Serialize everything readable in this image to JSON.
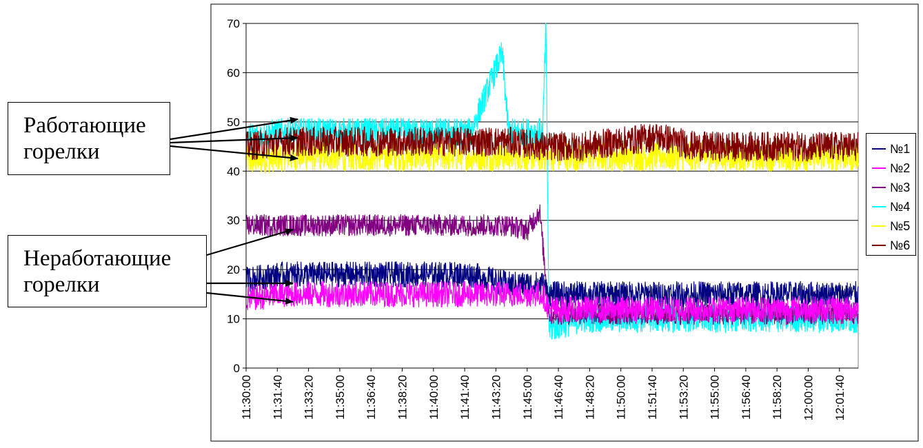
{
  "callouts": {
    "working": [
      "Работающие",
      "горелки"
    ],
    "idle": [
      "Неработающие",
      "горелки"
    ]
  },
  "chart_data": {
    "type": "line",
    "title": "",
    "xlabel": "",
    "ylabel": "",
    "xlim": [
      "11:30:00",
      "12:02:40"
    ],
    "ylim": [
      0,
      70
    ],
    "y_ticks": [
      0,
      10,
      20,
      30,
      40,
      50,
      60,
      70
    ],
    "x_ticks": [
      "11:30:00",
      "11:31:40",
      "11:33:20",
      "11:35:00",
      "11:36:40",
      "11:38:20",
      "11:40:00",
      "11:41:40",
      "11:43:20",
      "11:45:00",
      "11:46:40",
      "11:48:20",
      "11:50:00",
      "11:51:40",
      "11:53:20",
      "11:55:00",
      "11:56:40",
      "11:58:20",
      "12:00:00",
      "12:01:40"
    ],
    "grid": "horizontal",
    "legend_position": "right",
    "series": [
      {
        "name": "№1",
        "color": "#000080",
        "x": [
          "11:30:00",
          "11:32:00",
          "11:34:00",
          "11:36:00",
          "11:38:00",
          "11:40:00",
          "11:42:00",
          "11:44:00",
          "11:45:50",
          "11:46:10",
          "11:48:00",
          "11:51:00",
          "11:54:00",
          "11:57:00",
          "12:00:00",
          "12:02:40"
        ],
        "y": [
          18,
          19,
          19,
          19,
          19,
          19,
          19,
          17,
          17,
          15,
          15,
          15,
          15,
          15,
          15,
          15
        ]
      },
      {
        "name": "№2",
        "color": "#ff00ff",
        "x": [
          "11:30:00",
          "11:32:00",
          "11:34:00",
          "11:36:00",
          "11:38:00",
          "11:40:00",
          "11:42:00",
          "11:44:00",
          "11:45:50",
          "11:46:10",
          "11:48:00",
          "11:51:00",
          "11:54:00",
          "11:57:00",
          "12:00:00",
          "12:02:40"
        ],
        "y": [
          14,
          15,
          15,
          15,
          15,
          15,
          15,
          15,
          15,
          12,
          12,
          12,
          12,
          12,
          12,
          12
        ]
      },
      {
        "name": "№3",
        "color": "#800080",
        "x": [
          "11:30:00",
          "11:32:00",
          "11:34:00",
          "11:36:00",
          "11:38:00",
          "11:40:00",
          "11:42:00",
          "11:44:00",
          "11:45:00",
          "11:45:40",
          "11:46:10",
          "11:48:00",
          "11:51:00",
          "11:54:00",
          "11:57:00",
          "12:00:00",
          "12:02:40"
        ],
        "y": [
          29,
          29,
          29,
          29,
          29,
          29,
          29,
          29,
          28,
          32,
          11,
          11,
          11,
          11,
          11,
          11,
          11
        ]
      },
      {
        "name": "№4",
        "color": "#00ffff",
        "x": [
          "11:30:00",
          "11:32:00",
          "11:34:00",
          "11:36:00",
          "11:38:00",
          "11:40:00",
          "11:42:00",
          "11:43:40",
          "11:44:00",
          "11:45:50",
          "11:46:00",
          "11:46:10",
          "11:48:00",
          "11:51:00",
          "11:54:00",
          "12:00:00",
          "12:02:40"
        ],
        "y": [
          47,
          48,
          48,
          48,
          48,
          48,
          48,
          64,
          48,
          48,
          70,
          8,
          10,
          10,
          10,
          10,
          10
        ]
      },
      {
        "name": "№5",
        "color": "#ffff00",
        "x": [
          "11:30:00",
          "11:32:00",
          "11:34:00",
          "11:36:00",
          "11:38:00",
          "11:40:00",
          "11:42:00",
          "11:44:00",
          "11:46:00",
          "11:48:00",
          "11:50:00",
          "11:52:00",
          "11:54:00",
          "11:56:00",
          "11:58:00",
          "12:00:00",
          "12:02:40"
        ],
        "y": [
          42,
          43,
          43,
          43,
          43,
          43,
          43,
          43,
          43,
          43,
          43,
          43,
          43,
          43,
          43,
          43,
          43
        ]
      },
      {
        "name": "№6",
        "color": "#800000",
        "x": [
          "11:30:00",
          "11:32:00",
          "11:34:00",
          "11:36:00",
          "11:38:00",
          "11:40:00",
          "11:42:00",
          "11:44:00",
          "11:46:00",
          "11:48:00",
          "11:50:00",
          "11:52:00",
          "11:54:00",
          "11:56:00",
          "11:58:00",
          "12:00:00",
          "12:02:40"
        ],
        "y": [
          45,
          46,
          46,
          46,
          46,
          46,
          46,
          46,
          45,
          45,
          46,
          47,
          45,
          45,
          45,
          45,
          45
        ]
      }
    ]
  }
}
